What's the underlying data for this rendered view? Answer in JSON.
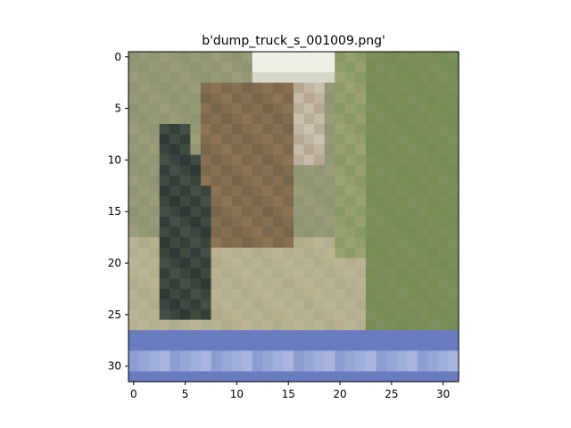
{
  "figure": {
    "title": "b'dump_truck_s_001009.png'",
    "image_size": [
      32,
      32
    ],
    "x_ticks": [
      "0",
      "5",
      "10",
      "15",
      "20",
      "25",
      "30"
    ],
    "y_ticks": [
      "0",
      "5",
      "10",
      "15",
      "20",
      "25",
      "30"
    ]
  },
  "image": {
    "description_colors": {
      "sky_gray": "#8f9472",
      "truck_brown": "#8d7454",
      "truck_dark": "#1e2a2c",
      "highlight_white": "#f4f4ee",
      "grass_green": "#6f8a4a",
      "road_tan": "#c6bc9c",
      "blue_base": "#5b6fb8",
      "blue_light": "#b6c3e6"
    }
  }
}
